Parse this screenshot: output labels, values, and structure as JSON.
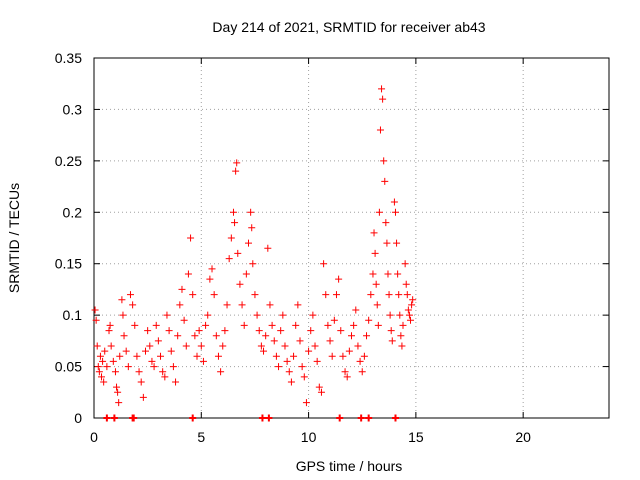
{
  "chart_data": {
    "type": "scatter",
    "title": "Day 214 of 2021, SRMTID for receiver ab43",
    "xlabel": "GPS time / hours",
    "ylabel": "SRMTID / TECUs",
    "xlim": [
      0,
      24
    ],
    "ylim": [
      0,
      0.35
    ],
    "xticks": [
      0,
      5,
      10,
      15,
      20
    ],
    "yticks": [
      0,
      0.05,
      0.1,
      0.15,
      0.2,
      0.25,
      0.3,
      0.35
    ],
    "grid": true,
    "marker": "+",
    "color": "#ff0000",
    "series": [
      {
        "name": "SRMTID",
        "points": [
          [
            0.05,
            0.105
          ],
          [
            0.1,
            0.095
          ],
          [
            0.15,
            0.07
          ],
          [
            0.2,
            0.05
          ],
          [
            0.25,
            0.045
          ],
          [
            0.3,
            0.06
          ],
          [
            0.35,
            0.04
          ],
          [
            0.4,
            0.055
          ],
          [
            0.45,
            0.035
          ],
          [
            0.5,
            0.065
          ],
          [
            0.6,
            0.05
          ],
          [
            0.7,
            0.085
          ],
          [
            0.75,
            0.09
          ],
          [
            0.8,
            0.07
          ],
          [
            0.9,
            0.055
          ],
          [
            1.0,
            0.045
          ],
          [
            1.05,
            0.03
          ],
          [
            1.1,
            0.025
          ],
          [
            1.15,
            0.015
          ],
          [
            1.2,
            0.06
          ],
          [
            1.3,
            0.115
          ],
          [
            1.35,
            0.1
          ],
          [
            1.4,
            0.08
          ],
          [
            1.5,
            0.065
          ],
          [
            1.6,
            0.05
          ],
          [
            1.7,
            0.12
          ],
          [
            1.8,
            0.11
          ],
          [
            1.9,
            0.09
          ],
          [
            2.0,
            0.06
          ],
          [
            2.1,
            0.045
          ],
          [
            2.2,
            0.035
          ],
          [
            2.3,
            0.02
          ],
          [
            2.4,
            0.065
          ],
          [
            2.5,
            0.085
          ],
          [
            2.6,
            0.07
          ],
          [
            2.7,
            0.055
          ],
          [
            2.8,
            0.05
          ],
          [
            2.9,
            0.09
          ],
          [
            3.0,
            0.075
          ],
          [
            3.1,
            0.06
          ],
          [
            3.2,
            0.045
          ],
          [
            3.3,
            0.04
          ],
          [
            3.4,
            0.1
          ],
          [
            3.5,
            0.085
          ],
          [
            3.6,
            0.065
          ],
          [
            3.7,
            0.05
          ],
          [
            3.8,
            0.035
          ],
          [
            3.9,
            0.08
          ],
          [
            4.0,
            0.11
          ],
          [
            4.1,
            0.125
          ],
          [
            4.2,
            0.095
          ],
          [
            4.3,
            0.07
          ],
          [
            4.4,
            0.14
          ],
          [
            4.5,
            0.175
          ],
          [
            4.6,
            0.12
          ],
          [
            4.7,
            0.08
          ],
          [
            4.8,
            0.06
          ],
          [
            4.9,
            0.085
          ],
          [
            5.0,
            0.07
          ],
          [
            5.1,
            0.055
          ],
          [
            5.2,
            0.09
          ],
          [
            5.3,
            0.1
          ],
          [
            5.4,
            0.135
          ],
          [
            5.5,
            0.145
          ],
          [
            5.6,
            0.12
          ],
          [
            5.7,
            0.08
          ],
          [
            5.8,
            0.06
          ],
          [
            5.9,
            0.045
          ],
          [
            6.0,
            0.07
          ],
          [
            6.1,
            0.085
          ],
          [
            6.2,
            0.11
          ],
          [
            6.3,
            0.155
          ],
          [
            6.4,
            0.175
          ],
          [
            6.5,
            0.2
          ],
          [
            6.55,
            0.19
          ],
          [
            6.6,
            0.24
          ],
          [
            6.65,
            0.248
          ],
          [
            6.7,
            0.16
          ],
          [
            6.8,
            0.13
          ],
          [
            6.9,
            0.11
          ],
          [
            7.0,
            0.09
          ],
          [
            7.1,
            0.14
          ],
          [
            7.2,
            0.17
          ],
          [
            7.3,
            0.2
          ],
          [
            7.35,
            0.185
          ],
          [
            7.4,
            0.15
          ],
          [
            7.5,
            0.12
          ],
          [
            7.6,
            0.1
          ],
          [
            7.7,
            0.085
          ],
          [
            7.8,
            0.07
          ],
          [
            7.9,
            0.065
          ],
          [
            8.0,
            0.08
          ],
          [
            8.1,
            0.165
          ],
          [
            8.2,
            0.11
          ],
          [
            8.3,
            0.09
          ],
          [
            8.4,
            0.075
          ],
          [
            8.5,
            0.06
          ],
          [
            8.6,
            0.05
          ],
          [
            8.7,
            0.085
          ],
          [
            8.8,
            0.1
          ],
          [
            8.9,
            0.07
          ],
          [
            9.0,
            0.055
          ],
          [
            9.1,
            0.045
          ],
          [
            9.2,
            0.035
          ],
          [
            9.3,
            0.06
          ],
          [
            9.4,
            0.09
          ],
          [
            9.5,
            0.11
          ],
          [
            9.6,
            0.075
          ],
          [
            9.7,
            0.05
          ],
          [
            9.8,
            0.04
          ],
          [
            9.9,
            0.015
          ],
          [
            10.0,
            0.065
          ],
          [
            10.1,
            0.085
          ],
          [
            10.2,
            0.1
          ],
          [
            10.3,
            0.07
          ],
          [
            10.4,
            0.055
          ],
          [
            10.5,
            0.03
          ],
          [
            10.6,
            0.025
          ],
          [
            10.7,
            0.15
          ],
          [
            10.8,
            0.12
          ],
          [
            10.9,
            0.09
          ],
          [
            11.0,
            0.075
          ],
          [
            11.1,
            0.06
          ],
          [
            11.2,
            0.095
          ],
          [
            11.3,
            0.12
          ],
          [
            11.4,
            0.135
          ],
          [
            11.5,
            0.085
          ],
          [
            11.6,
            0.06
          ],
          [
            11.7,
            0.045
          ],
          [
            11.8,
            0.04
          ],
          [
            11.9,
            0.065
          ],
          [
            12.0,
            0.08
          ],
          [
            12.1,
            0.09
          ],
          [
            12.2,
            0.105
          ],
          [
            12.3,
            0.07
          ],
          [
            12.4,
            0.055
          ],
          [
            12.5,
            0.045
          ],
          [
            12.6,
            0.06
          ],
          [
            12.7,
            0.08
          ],
          [
            12.8,
            0.095
          ],
          [
            12.9,
            0.12
          ],
          [
            13.0,
            0.14
          ],
          [
            13.05,
            0.18
          ],
          [
            13.1,
            0.16
          ],
          [
            13.15,
            0.13
          ],
          [
            13.2,
            0.11
          ],
          [
            13.25,
            0.09
          ],
          [
            13.3,
            0.2
          ],
          [
            13.35,
            0.28
          ],
          [
            13.4,
            0.32
          ],
          [
            13.45,
            0.31
          ],
          [
            13.5,
            0.25
          ],
          [
            13.55,
            0.23
          ],
          [
            13.6,
            0.19
          ],
          [
            13.65,
            0.17
          ],
          [
            13.7,
            0.14
          ],
          [
            13.75,
            0.12
          ],
          [
            13.8,
            0.1
          ],
          [
            13.85,
            0.085
          ],
          [
            13.9,
            0.075
          ],
          [
            14.0,
            0.21
          ],
          [
            14.05,
            0.2
          ],
          [
            14.1,
            0.17
          ],
          [
            14.15,
            0.14
          ],
          [
            14.2,
            0.12
          ],
          [
            14.25,
            0.1
          ],
          [
            14.3,
            0.08
          ],
          [
            14.35,
            0.07
          ],
          [
            14.4,
            0.09
          ],
          [
            14.5,
            0.15
          ],
          [
            14.55,
            0.13
          ],
          [
            14.6,
            0.12
          ],
          [
            14.65,
            0.105
          ],
          [
            14.7,
            0.1
          ],
          [
            14.75,
            0.095
          ],
          [
            14.8,
            0.11
          ],
          [
            14.85,
            0.115
          ]
        ]
      }
    ],
    "zero_markers_x": [
      0.6,
      0.95,
      1.8,
      1.85,
      4.6,
      7.85,
      8.15,
      11.45,
      12.45,
      12.8,
      14.05
    ]
  }
}
